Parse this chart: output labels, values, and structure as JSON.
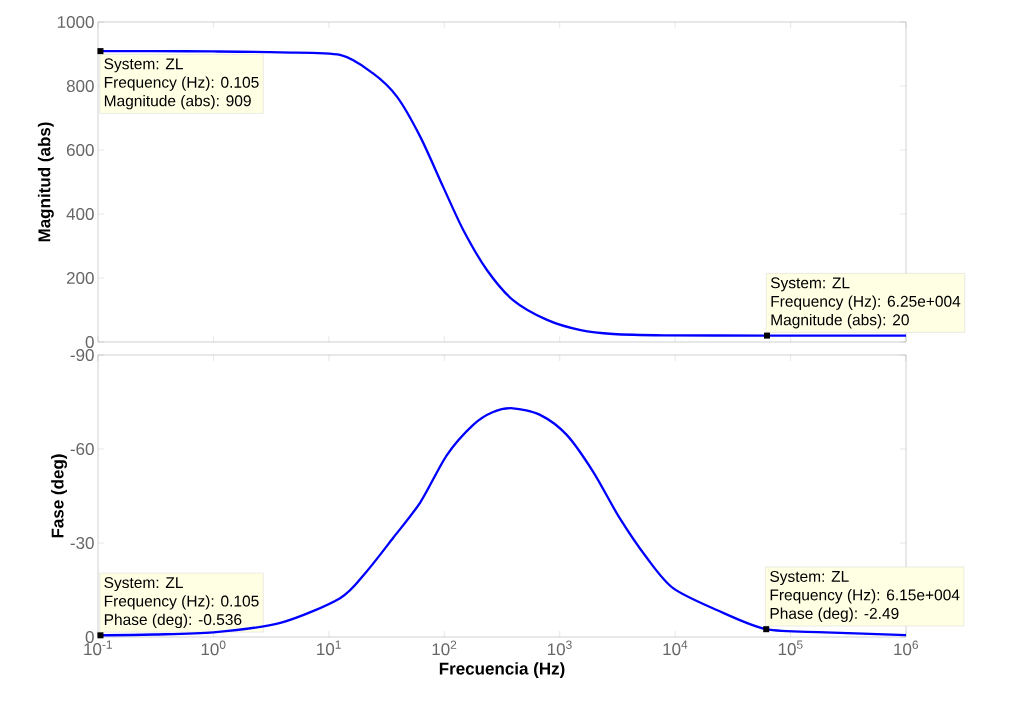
{
  "chart_data": [
    {
      "type": "line",
      "ylabel": "Magnitud (abs)",
      "log": "x",
      "color": "#0000ff",
      "tick_labels": "y",
      "x": [
        0.1,
        0.3,
        1,
        3.8,
        12.5,
        24,
        39,
        62,
        98,
        146,
        234,
        394,
        777,
        1520,
        2900,
        8000,
        62500,
        200000,
        1000000
      ],
      "values": [
        909,
        909,
        908,
        905,
        897,
        840,
        766,
        641,
        484,
        350,
        225,
        131,
        69,
        37,
        25,
        21,
        20,
        20,
        20
      ],
      "xlim": [
        0.1,
        1000000
      ],
      "ylim": [
        0,
        1000
      ],
      "xticks": [
        {
          "value": 0.1,
          "label": null
        },
        {
          "value": 1,
          "label": null
        },
        {
          "value": 10,
          "label": null
        },
        {
          "value": 100,
          "label": null
        },
        {
          "value": 1000,
          "label": null
        },
        {
          "value": 10000,
          "label": null
        },
        {
          "value": 100000,
          "label": null
        },
        {
          "value": 1000000,
          "label": null
        }
      ],
      "yticks": [
        0,
        200,
        400,
        600,
        800,
        1000
      ],
      "annotations": [
        {
          "text": "System: ZL",
          "x": 0.105,
          "y": 909
        },
        {
          "text": "Frequency (Hz): 0.105",
          "x": 0.105,
          "y": 909
        },
        {
          "text": "Magnitude (abs): 909",
          "x": 0.105,
          "y": 909
        },
        {
          "text": "System: ZL",
          "x": 62500,
          "y": 20
        },
        {
          "text": "Frequency (Hz): 6.25e+004",
          "x": 62500,
          "y": 20
        },
        {
          "text": "Magnitude (abs): 20",
          "x": 62500,
          "y": 20
        }
      ]
    },
    {
      "type": "line",
      "xlabel": "Frecuencia  (Hz)",
      "ylabel": "Fase (deg)",
      "log": "x",
      "color": "#0000ff",
      "x": [
        0.1,
        0.3,
        1,
        3.8,
        12.5,
        21,
        36,
        62,
        105,
        178,
        265,
        394,
        676,
        1150,
        1950,
        3300,
        5700,
        9600,
        23000,
        61500,
        200000,
        1000000
      ],
      "values": [
        -0.536,
        -0.8,
        -1.5,
        -4.5,
        -12.4,
        -20.7,
        -31.6,
        -43,
        -58,
        -67.7,
        -71.8,
        -73,
        -70.9,
        -64.5,
        -52.7,
        -38,
        -25.2,
        -15.6,
        -8.6,
        -2.49,
        -1.5,
        -0.6
      ],
      "xlim": [
        0.1,
        1000000
      ],
      "ylim": [
        0,
        -90
      ],
      "xticks": [
        {
          "value": 0.1,
          "label": "10$^{-1}$"
        },
        {
          "value": 1,
          "label": "10$^{0}$"
        },
        {
          "value": 10,
          "label": "10$^{1}$"
        },
        {
          "value": 100,
          "label": "10$^{2}$"
        },
        {
          "value": 1000,
          "label": "10$^{3}$"
        },
        {
          "value": 10000,
          "label": "10$^{4}$"
        },
        {
          "value": 100000,
          "label": "10$^{5}$"
        },
        {
          "value": 1000000,
          "label": "10$^{6}$"
        }
      ],
      "yticks": [
        -90,
        -60,
        -30,
        0
      ],
      "annotations": [
        {
          "text": "System: ZL",
          "x": 0.105,
          "y": -0.536
        },
        {
          "text": "Frequency (Hz): 0.105",
          "x": 0.105,
          "y": -0.536
        },
        {
          "text": "Phase (deg): -0.536",
          "x": 0.105,
          "y": -0.536
        },
        {
          "text": "System: ZL",
          "x": 61500,
          "y": -2.49
        },
        {
          "text": "Frequency (Hz): 6.15e+004",
          "x": 61500,
          "y": -2.49
        },
        {
          "text": "Phase (deg): -2.49",
          "x": 61500,
          "y": -2.49
        }
      ]
    }
  ]
}
